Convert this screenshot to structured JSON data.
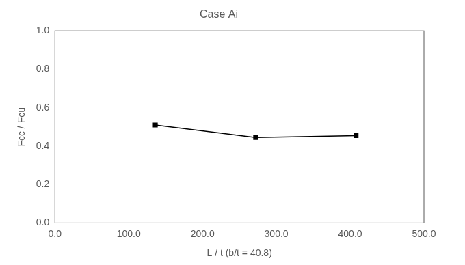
{
  "chart_data": {
    "type": "line",
    "title": "Case Ai",
    "x_label": "L / t (b/t = 40.8)",
    "y_label": "Fcc / Fcu",
    "x": [
      136,
      272,
      408
    ],
    "series": [
      {
        "name": "Case Ai",
        "color": "#000000",
        "marker": "square",
        "line_style": "solid",
        "values": [
          0.51,
          0.445,
          0.455
        ]
      }
    ],
    "xlim": [
      0,
      500
    ],
    "xticks": [
      {
        "value": 0,
        "label": "0.0"
      },
      {
        "value": 100,
        "label": "100.0"
      },
      {
        "value": 200,
        "label": "200.0"
      },
      {
        "value": 300,
        "label": "300.0"
      },
      {
        "value": 400,
        "label": "400.0"
      },
      {
        "value": 500,
        "label": "500.0"
      }
    ],
    "ylim": [
      0,
      1
    ],
    "yticks": [
      {
        "value": 0,
        "label": "0.0"
      },
      {
        "value": 0.2,
        "label": "0.2"
      },
      {
        "value": 0.4,
        "label": "0.4"
      },
      {
        "value": 0.6,
        "label": "0.6"
      },
      {
        "value": 0.8,
        "label": "0.8"
      },
      {
        "value": 1,
        "label": "1.0"
      }
    ],
    "grid": false
  }
}
